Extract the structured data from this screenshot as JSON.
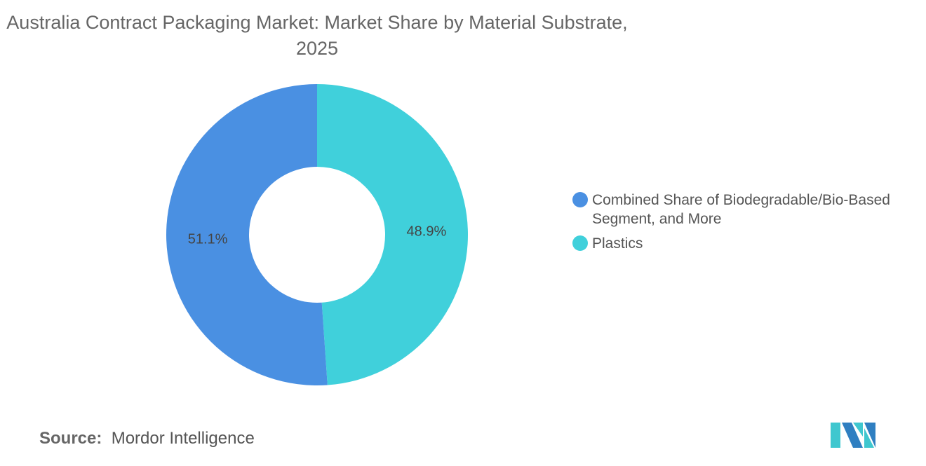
{
  "chart_data": {
    "type": "pie",
    "variant": "donut",
    "title": "Australia Contract Packaging Market: Market Share by Material Substrate, 2025",
    "categories": [
      "Combined Share of Biodegradable/Bio-Based Segment, and More",
      "Plastics"
    ],
    "values": [
      51.1,
      48.9
    ],
    "unit": "%",
    "data_labels": [
      "51.1%",
      "48.9%"
    ],
    "colors": [
      "#4a90e2",
      "#40d0db"
    ],
    "legend_placement": "right"
  },
  "title_line1": "Australia Contract Packaging Market: Market Share by Material Substrate,",
  "title_line2": "2025",
  "source": {
    "label": "Source:",
    "value": "Mordor Intelligence"
  },
  "logo": {
    "text": "Mordor Intelligence",
    "colors": [
      "#2f7fc1",
      "#3fc7cf"
    ]
  }
}
